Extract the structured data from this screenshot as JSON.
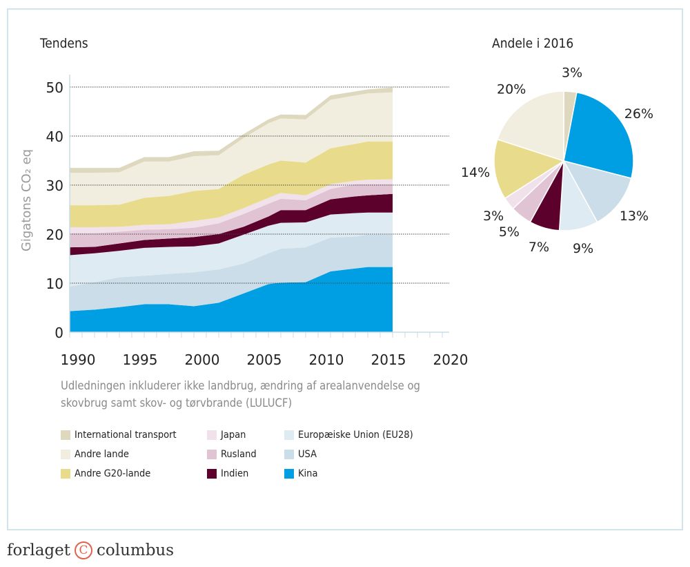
{
  "chart_data": [
    {
      "type": "area",
      "stacked": true,
      "title": "Tendens",
      "ylabel": "Gigatons CO₂ eq",
      "xlabel": "",
      "xlim": [
        1990,
        2020
      ],
      "ylim": [
        0,
        50
      ],
      "xticks": [
        "1990",
        "1995",
        "2000",
        "2005",
        "2010",
        "2015",
        "2020"
      ],
      "yticks": [
        "0",
        "10",
        "20",
        "30",
        "40",
        "50"
      ],
      "grid": "horizontal dotted",
      "x": [
        1990,
        1992,
        1994,
        1996,
        1998,
        2000,
        2002,
        2004,
        2006,
        2007,
        2009,
        2011,
        2013,
        2014,
        2016
      ],
      "series": [
        {
          "name": "Kina",
          "color": "#009fe3",
          "values": [
            4.3,
            4.6,
            5.1,
            5.7,
            5.7,
            5.3,
            6.0,
            7.9,
            9.8,
            10.1,
            10.2,
            12.4,
            13.0,
            13.3,
            13.3
          ]
        },
        {
          "name": "USA",
          "color": "#cadde8",
          "values": [
            5.0,
            5.6,
            6.1,
            5.8,
            6.2,
            6.9,
            6.8,
            6.1,
            6.3,
            6.9,
            7.1,
            6.9,
            6.5,
            6.6,
            6.6
          ]
        },
        {
          "name": "Europæiske Union (EU28)",
          "color": "#deebf2",
          "values": [
            6.4,
            5.9,
            5.4,
            5.7,
            5.5,
            5.3,
            5.3,
            5.9,
            5.6,
            5.3,
            5.1,
            4.7,
            4.8,
            4.5,
            4.5
          ]
        },
        {
          "name": "Indien",
          "color": "#5c002c",
          "values": [
            1.6,
            1.3,
            1.5,
            1.6,
            1.7,
            1.9,
            1.9,
            1.6,
            1.9,
            2.6,
            2.5,
            3.1,
            3.4,
            3.5,
            3.8
          ]
        },
        {
          "name": "Rusland",
          "color": "#e1c4d4",
          "values": [
            2.9,
            2.8,
            2.4,
            2.1,
            1.9,
            1.9,
            2.2,
            2.6,
            2.6,
            2.3,
            2.0,
            2.1,
            2.5,
            2.3,
            2.0
          ]
        },
        {
          "name": "Japan",
          "color": "#f0e1ea",
          "values": [
            1.2,
            1.2,
            1.0,
            1.0,
            1.0,
            1.4,
            1.2,
            1.2,
            1.2,
            1.2,
            1.0,
            1.0,
            0.7,
            0.9,
            1.0
          ]
        },
        {
          "name": "Andre G20-lande",
          "color": "#e8dc8c",
          "values": [
            4.5,
            4.5,
            4.5,
            5.5,
            5.8,
            6.1,
            5.8,
            6.8,
            6.8,
            6.6,
            6.7,
            7.3,
            7.5,
            7.8,
            7.7
          ]
        },
        {
          "name": "Andre lande",
          "color": "#f1eedf",
          "values": [
            6.6,
            6.6,
            6.6,
            7.4,
            7.0,
            7.1,
            6.9,
            7.5,
            8.4,
            8.6,
            8.8,
            9.9,
            9.9,
            9.8,
            10.0
          ]
        },
        {
          "name": "International transport",
          "color": "#ddd8be",
          "values": [
            1.0,
            1.0,
            0.9,
            0.9,
            0.9,
            1.0,
            0.9,
            0.8,
            0.8,
            0.8,
            0.9,
            0.9,
            0.8,
            0.8,
            1.0
          ]
        }
      ]
    },
    {
      "type": "pie",
      "title": "Andele i 2016",
      "slices": [
        {
          "name": "International transport",
          "value": 3,
          "label": "3%",
          "color": "#ddd8be"
        },
        {
          "name": "Kina",
          "value": 26,
          "label": "26%",
          "color": "#009fe3"
        },
        {
          "name": "USA",
          "value": 13,
          "label": "13%",
          "color": "#cadde8"
        },
        {
          "name": "Europæiske Union (EU28)",
          "value": 9,
          "label": "9%",
          "color": "#deebf2"
        },
        {
          "name": "Indien",
          "value": 7,
          "label": "7%",
          "color": "#5c002c"
        },
        {
          "name": "Rusland",
          "value": 5,
          "label": "5%",
          "color": "#e1c4d4"
        },
        {
          "name": "Japan",
          "value": 3,
          "label": "3%",
          "color": "#f0e1ea"
        },
        {
          "name": "Andre G20-lande",
          "value": 14,
          "label": "14%",
          "color": "#e8dc8c"
        },
        {
          "name": "Andre lande",
          "value": 20,
          "label": "20%",
          "color": "#f1eedf"
        }
      ]
    }
  ],
  "note": "Udledningen inkluderer ikke landbrug, ændring af arealanvendelse og skovbrug samt skov- og tørvbrande (LULUCF)",
  "legend": [
    {
      "label": "International transport",
      "color": "#ddd8be"
    },
    {
      "label": "Andre lande",
      "color": "#f1eedf"
    },
    {
      "label": "Andre G20-lande",
      "color": "#e8dc8c"
    },
    {
      "label": "Japan",
      "color": "#f0e1ea"
    },
    {
      "label": "Rusland",
      "color": "#e1c4d4"
    },
    {
      "label": "Indien",
      "color": "#5c002c"
    },
    {
      "label": "Europæiske Union (EU28)",
      "color": "#deebf2"
    },
    {
      "label": "USA",
      "color": "#cadde8"
    },
    {
      "label": "Kina",
      "color": "#009fe3"
    }
  ],
  "logo": {
    "left": "forlaget",
    "mark": "C",
    "right": "columbus"
  }
}
